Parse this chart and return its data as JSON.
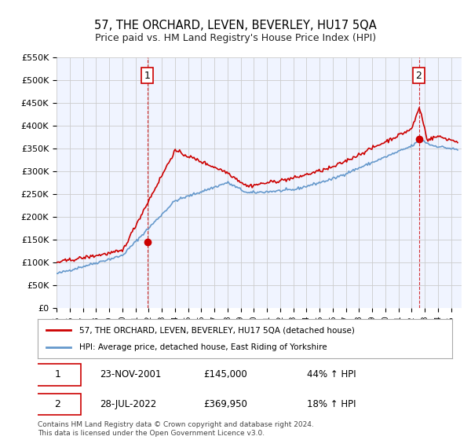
{
  "title": "57, THE ORCHARD, LEVEN, BEVERLEY, HU17 5QA",
  "subtitle": "Price paid vs. HM Land Registry's House Price Index (HPI)",
  "legend_line1": "57, THE ORCHARD, LEVEN, BEVERLEY, HU17 5QA (detached house)",
  "legend_line2": "HPI: Average price, detached house, East Riding of Yorkshire",
  "transaction1_label": "1",
  "transaction1_date": "23-NOV-2001",
  "transaction1_price": "£145,000",
  "transaction1_hpi": "44% ↑ HPI",
  "transaction1_year": 2001.9,
  "transaction1_value": 145000,
  "transaction2_label": "2",
  "transaction2_date": "28-JUL-2022",
  "transaction2_price": "£369,950",
  "transaction2_hpi": "18% ↑ HPI",
  "transaction2_year": 2022.55,
  "transaction2_value": 369950,
  "hpi_color": "#6699cc",
  "price_color": "#cc0000",
  "marker_color": "#cc0000",
  "annotation_box_color": "#cc0000",
  "vline_color": "#cc0000",
  "grid_color": "#cccccc",
  "bg_color": "#f0f4ff",
  "ylim_min": 0,
  "ylim_max": 550000,
  "footnote": "Contains HM Land Registry data © Crown copyright and database right 2024.\nThis data is licensed under the Open Government Licence v3.0."
}
